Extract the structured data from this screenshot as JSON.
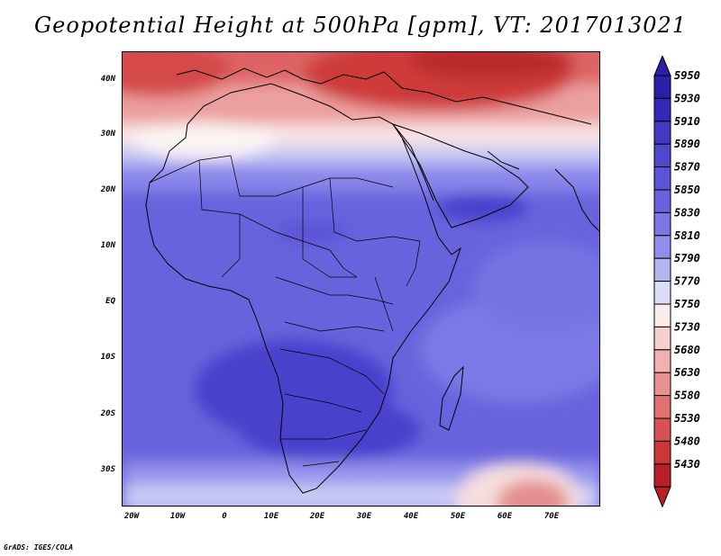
{
  "title": "Geopotential Height at 500hPa [gpm], VT: 2017013021",
  "footer": "GrADS: IGES/COLA",
  "lat_labels": [
    "40N",
    "30N",
    "20N",
    "10N",
    "EQ",
    "10S",
    "20S",
    "30S"
  ],
  "lon_labels": [
    "20W",
    "10W",
    "0",
    "10E",
    "20E",
    "30E",
    "40E",
    "50E",
    "60E",
    "70E"
  ],
  "colorbar": {
    "levels": [
      "5950",
      "5930",
      "5910",
      "5890",
      "5870",
      "5850",
      "5830",
      "5810",
      "5790",
      "5770",
      "5750",
      "5730",
      "5680",
      "5630",
      "5580",
      "5530",
      "5480",
      "5430"
    ],
    "colors": [
      "#2a1fa6",
      "#3527b8",
      "#4138c4",
      "#4e48cd",
      "#5a55d6",
      "#6863dd",
      "#7a76e4",
      "#908ee9",
      "#b4b5f1",
      "#dcdcf8",
      "#fbeaea",
      "#f6cfcf",
      "#f0b1b0",
      "#e99191",
      "#e07272",
      "#d65252",
      "#cb3636",
      "#b91f24"
    ]
  },
  "colors": {
    "deep_blue": "#4336c8",
    "mid_blue": "#6762e0",
    "light_blue": "#8e8bec",
    "red": "#d94545",
    "dark_red": "#c02f2f"
  }
}
